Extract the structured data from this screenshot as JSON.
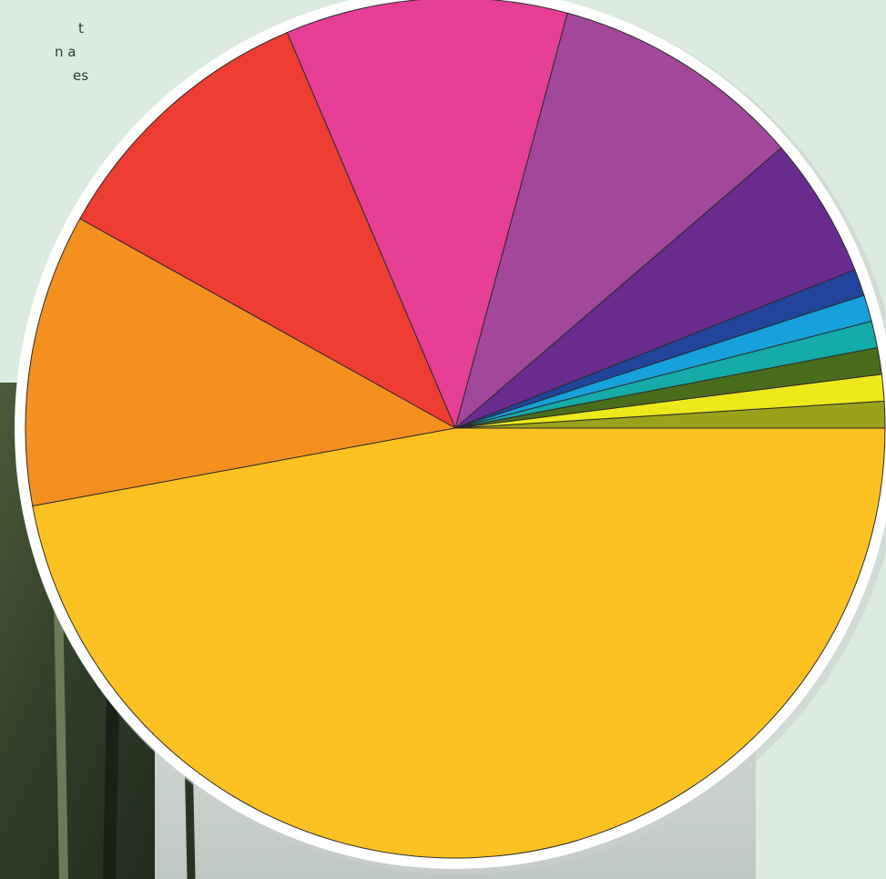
{
  "texts": [
    "t",
    "n a",
    "es"
  ],
  "chart_data": {
    "type": "pie",
    "values": [
      1,
      1,
      1,
      1,
      1,
      1,
      5.3,
      9.5,
      10.6,
      10.5,
      11,
      47.1
    ],
    "colors": [
      "#9aa21c",
      "#ece81a",
      "#4a6d1c",
      "#13aaa8",
      "#16a0dc",
      "#21449a",
      "#6a2b8e",
      "#a3479b",
      "#e53e94",
      "#ee3c33",
      "#f5901f",
      "#fdc221"
    ]
  }
}
